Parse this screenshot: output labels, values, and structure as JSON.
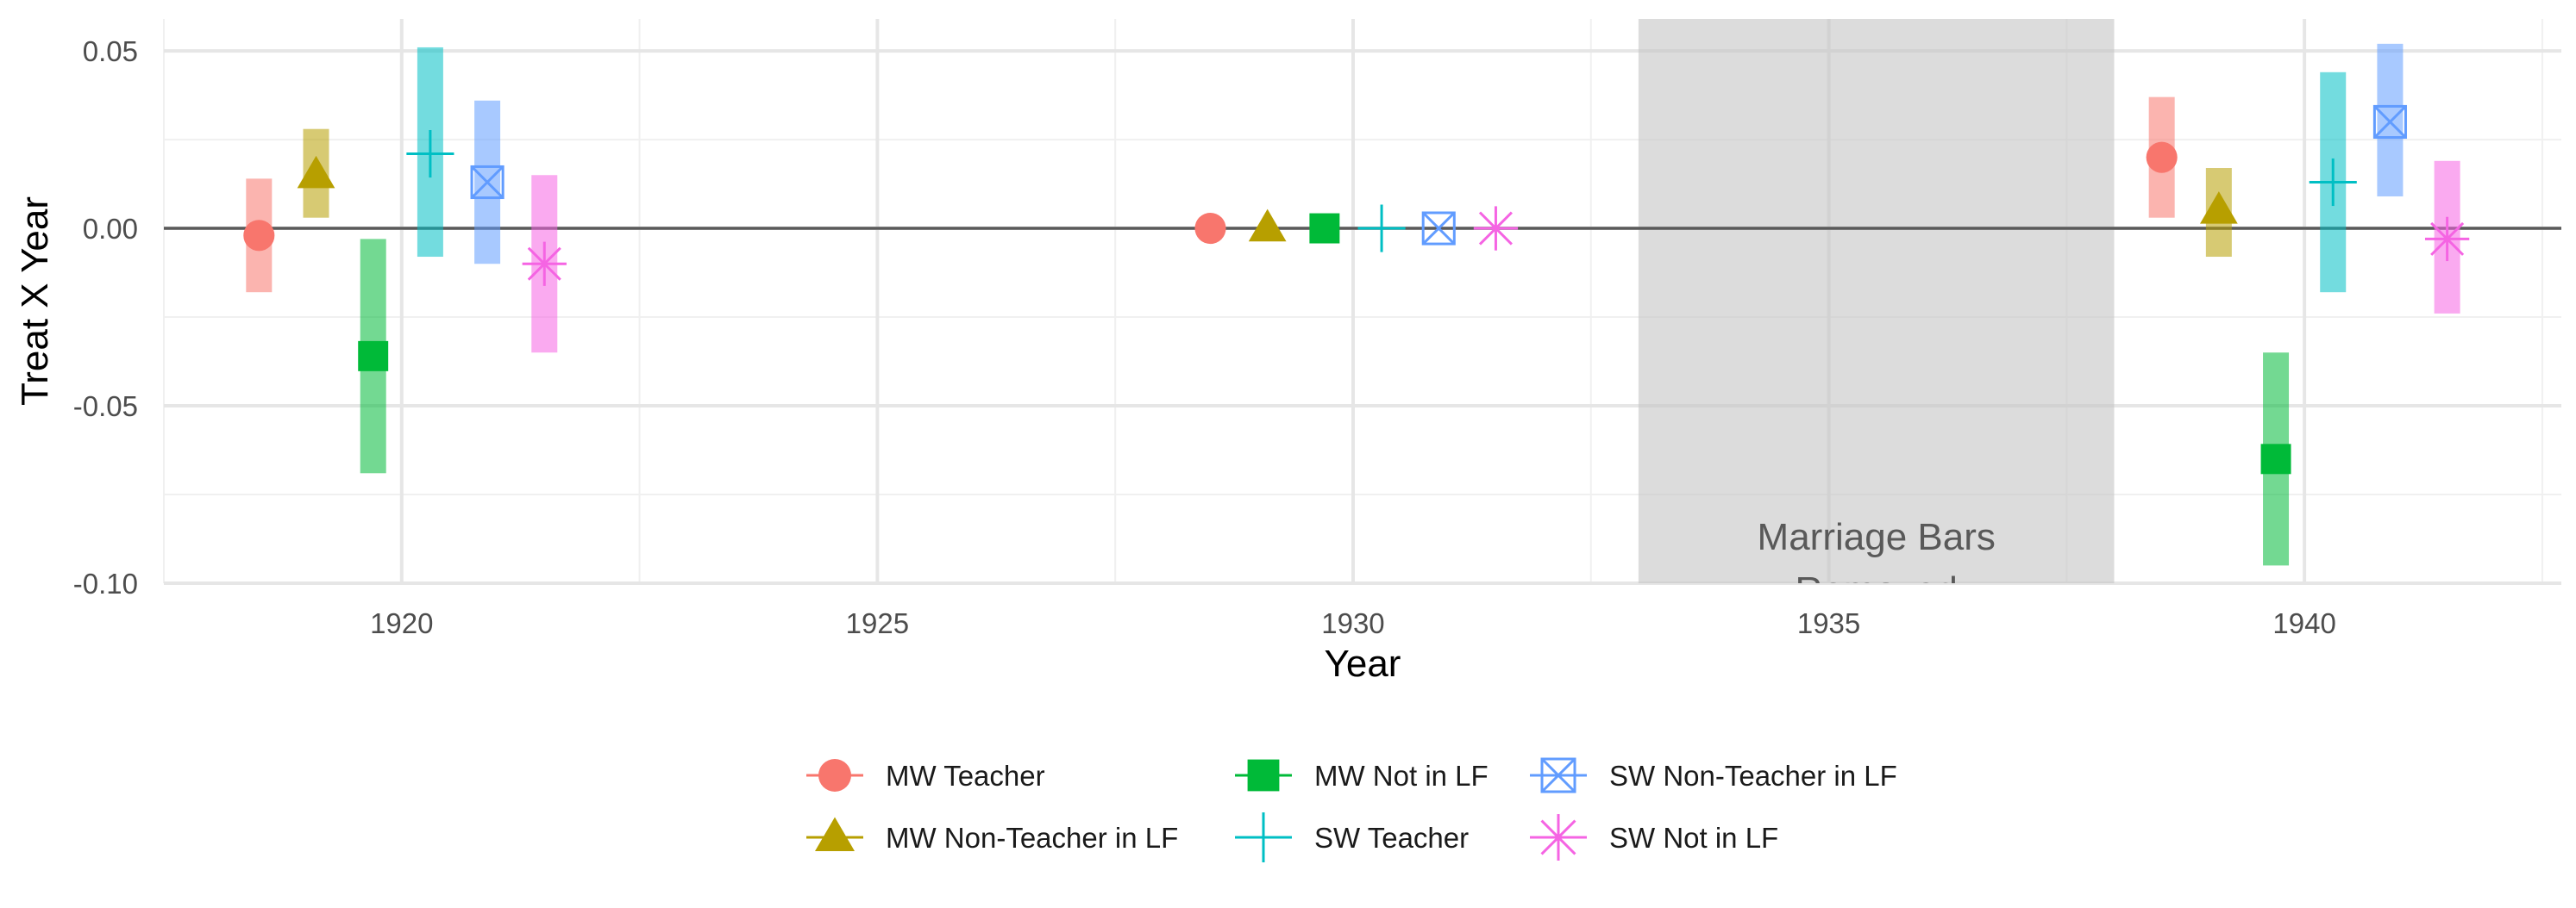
{
  "chart_data": {
    "type": "scatter",
    "title": "",
    "xlabel": "Year",
    "ylabel": "Treat X Year",
    "xlim": [
      1917.5,
      1942.7
    ],
    "ylim": [
      -0.1,
      0.059
    ],
    "x_ticks": [
      1920,
      1925,
      1930,
      1935,
      1940
    ],
    "x_tick_labels": [
      "1920",
      "1925",
      "1930",
      "1935",
      "1940"
    ],
    "y_ticks": [
      -0.1,
      -0.05,
      0.0,
      0.05
    ],
    "y_tick_labels": [
      "-0.10",
      "-0.05",
      "0.00",
      "0.05"
    ],
    "grid": true,
    "legend_position": "bottom",
    "reference_line_y": 0,
    "annotation": {
      "x_start": 1933,
      "x_end": 1938,
      "text_line1": "Marriage Bars",
      "text_line2": "Removed"
    },
    "series": [
      {
        "name": "MW Teacher",
        "color": "#F8766D",
        "shape": "circle",
        "points": [
          {
            "x": 1918.5,
            "y": -0.002,
            "lo": -0.018,
            "hi": 0.014
          },
          {
            "x": 1928.5,
            "y": 0.0
          },
          {
            "x": 1938.5,
            "y": 0.02,
            "lo": 0.003,
            "hi": 0.037
          }
        ]
      },
      {
        "name": "MW Non-Teacher in LF",
        "color": "#B79F00",
        "shape": "triangle",
        "points": [
          {
            "x": 1919.1,
            "y": 0.015,
            "lo": 0.003,
            "hi": 0.028
          },
          {
            "x": 1929.1,
            "y": 0.0
          },
          {
            "x": 1939.1,
            "y": 0.005,
            "lo": -0.008,
            "hi": 0.017
          }
        ]
      },
      {
        "name": "MW Not in LF",
        "color": "#00BA38",
        "shape": "square",
        "points": [
          {
            "x": 1919.7,
            "y": -0.036,
            "lo": -0.069,
            "hi": -0.003
          },
          {
            "x": 1929.7,
            "y": 0.0
          },
          {
            "x": 1939.7,
            "y": -0.065,
            "lo": -0.095,
            "hi": -0.035
          }
        ]
      },
      {
        "name": "SW Teacher",
        "color": "#00BFC4",
        "shape": "plus",
        "points": [
          {
            "x": 1920.3,
            "y": 0.021,
            "lo": -0.008,
            "hi": 0.051
          },
          {
            "x": 1930.3,
            "y": 0.0
          },
          {
            "x": 1940.3,
            "y": 0.013,
            "lo": -0.018,
            "hi": 0.044
          }
        ]
      },
      {
        "name": "SW Non-Teacher in LF",
        "color": "#619CFF",
        "shape": "square-x",
        "points": [
          {
            "x": 1920.9,
            "y": 0.013,
            "lo": -0.01,
            "hi": 0.036
          },
          {
            "x": 1930.9,
            "y": 0.0
          },
          {
            "x": 1940.9,
            "y": 0.03,
            "lo": 0.009,
            "hi": 0.052
          }
        ]
      },
      {
        "name": "SW Not in LF",
        "color": "#F564E3",
        "shape": "asterisk",
        "points": [
          {
            "x": 1921.5,
            "y": -0.01,
            "lo": -0.035,
            "hi": 0.015
          },
          {
            "x": 1931.5,
            "y": 0.0
          },
          {
            "x": 1941.5,
            "y": -0.003,
            "lo": -0.024,
            "hi": 0.019
          }
        ]
      }
    ]
  }
}
